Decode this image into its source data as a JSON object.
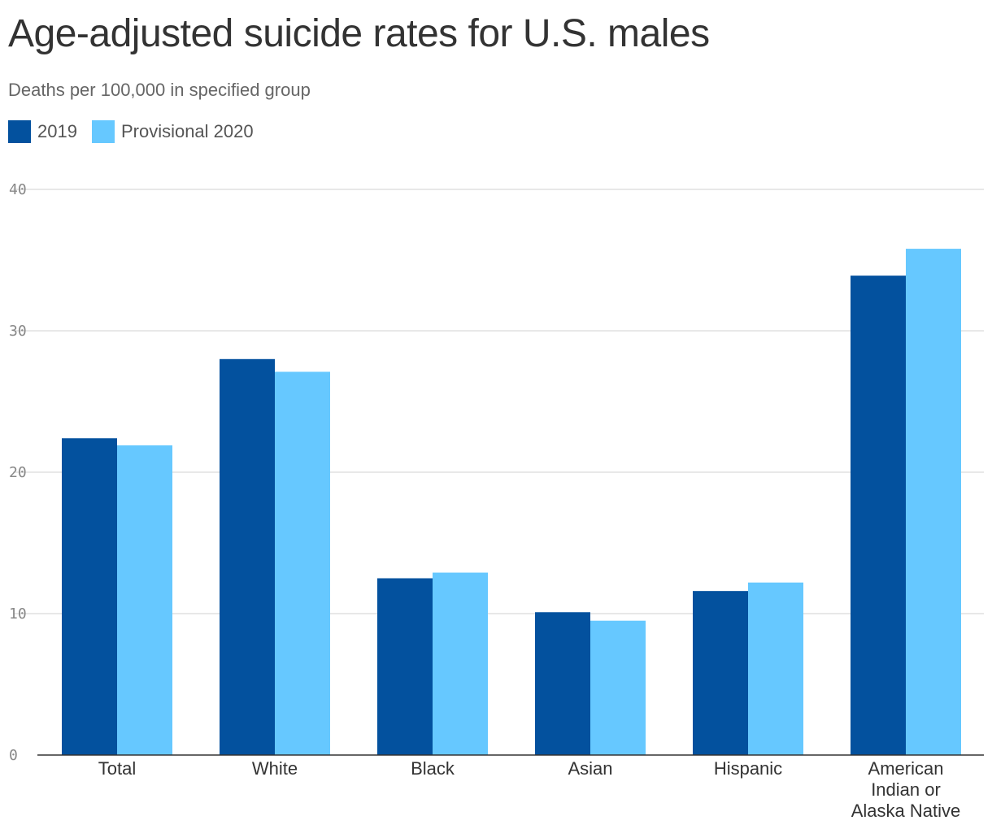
{
  "title": "Age-adjusted suicide rates for U.S. males",
  "subtitle": "Deaths per 100,000 in specified group",
  "legend": [
    {
      "label": "2019",
      "color": "#03519e"
    },
    {
      "label": "Provisional 2020",
      "color": "#66c8ff"
    }
  ],
  "chart_data": {
    "type": "bar",
    "title": "Age-adjusted suicide rates for U.S. males",
    "subtitle": "Deaths per 100,000 in specified group",
    "categories": [
      [
        "Total"
      ],
      [
        "White"
      ],
      [
        "Black"
      ],
      [
        "Asian"
      ],
      [
        "Hispanic"
      ],
      [
        "American",
        "Indian or",
        "Alaska Native"
      ]
    ],
    "series": [
      {
        "name": "2019",
        "color": "#03519e",
        "values": [
          22.4,
          28.0,
          12.5,
          10.1,
          11.6,
          33.9
        ]
      },
      {
        "name": "Provisional 2020",
        "color": "#66c8ff",
        "values": [
          21.9,
          27.1,
          12.9,
          9.5,
          12.2,
          35.8
        ]
      }
    ],
    "ylim": [
      0,
      40
    ],
    "yticks": [
      0,
      10,
      20,
      30,
      40
    ],
    "grid": true,
    "legend_position": "top-left",
    "xlabel": "",
    "ylabel": ""
  }
}
